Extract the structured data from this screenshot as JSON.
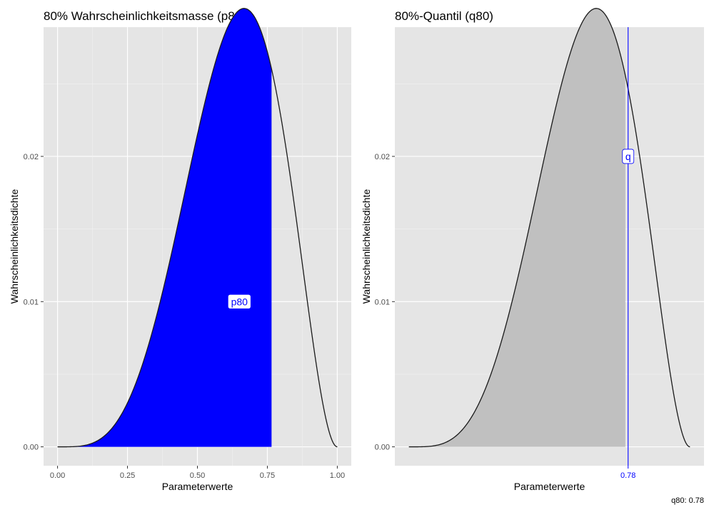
{
  "chart_data": [
    {
      "type": "area",
      "title": "80% Wahrscheinlichkeitsmasse (p80)",
      "xlabel": "Parameterwerte",
      "ylabel": "Wahrscheinlichkeitsdichte",
      "xlim": [
        -0.05,
        1.05
      ],
      "ylim": [
        -0.0013,
        0.0289
      ],
      "x_ticks": [
        "0.00",
        "0.25",
        "0.50",
        "0.75",
        "1.00"
      ],
      "y_ticks": [
        "0.00",
        "0.01",
        "0.02"
      ],
      "x": [
        0.0,
        0.05,
        0.1,
        0.15,
        0.2,
        0.25,
        0.3,
        0.35,
        0.4,
        0.45,
        0.5,
        0.55,
        0.6,
        0.65,
        0.667,
        0.7,
        0.75,
        0.8,
        0.85,
        0.9,
        0.95,
        1.0
      ],
      "y": [
        0.0,
        1.2e-05,
        0.00018,
        0.00086,
        0.0025,
        0.0053,
        0.0089,
        0.013,
        0.017,
        0.0205,
        0.0233,
        0.0257,
        0.027,
        0.0275,
        0.0276,
        0.0272,
        0.0239,
        0.0186,
        0.012,
        0.0057,
        0.0015,
        0.0
      ],
      "shaded_region": {
        "from": 0.0,
        "to": 0.765,
        "color": "#0000ff"
      },
      "annotation": {
        "text": "p80",
        "x": 0.65,
        "y": 0.01,
        "color": "#0000ff"
      },
      "grid": true
    },
    {
      "type": "area",
      "title": "80%-Quantil (q80)",
      "xlabel": "Parameterwerte",
      "ylabel": "Wahrscheinlichkeitsdichte",
      "xlim": [
        -0.05,
        1.05
      ],
      "ylim": [
        -0.0013,
        0.0289
      ],
      "x_ticks": [
        "0.78"
      ],
      "x_tick_color": "#0000ff",
      "y_ticks": [
        "0.00",
        "0.01",
        "0.02"
      ],
      "x": [
        0.0,
        0.05,
        0.1,
        0.15,
        0.2,
        0.25,
        0.3,
        0.35,
        0.4,
        0.45,
        0.5,
        0.55,
        0.6,
        0.65,
        0.667,
        0.7,
        0.75,
        0.8,
        0.85,
        0.9,
        0.95,
        1.0
      ],
      "y": [
        0.0,
        1.2e-05,
        0.00018,
        0.00086,
        0.0025,
        0.0053,
        0.0089,
        0.013,
        0.017,
        0.0205,
        0.0233,
        0.0257,
        0.027,
        0.0275,
        0.0276,
        0.0272,
        0.0239,
        0.0186,
        0.012,
        0.0057,
        0.0015,
        0.0
      ],
      "shaded_region": {
        "from": 0.0,
        "to": 0.77,
        "color": "#c0c0c0"
      },
      "vline": {
        "x": 0.78,
        "color": "#0000ff"
      },
      "annotation": {
        "text": "q",
        "x": 0.78,
        "y": 0.02,
        "color": "#0000ff"
      },
      "grid": true
    }
  ],
  "caption": "q80: 0.78"
}
